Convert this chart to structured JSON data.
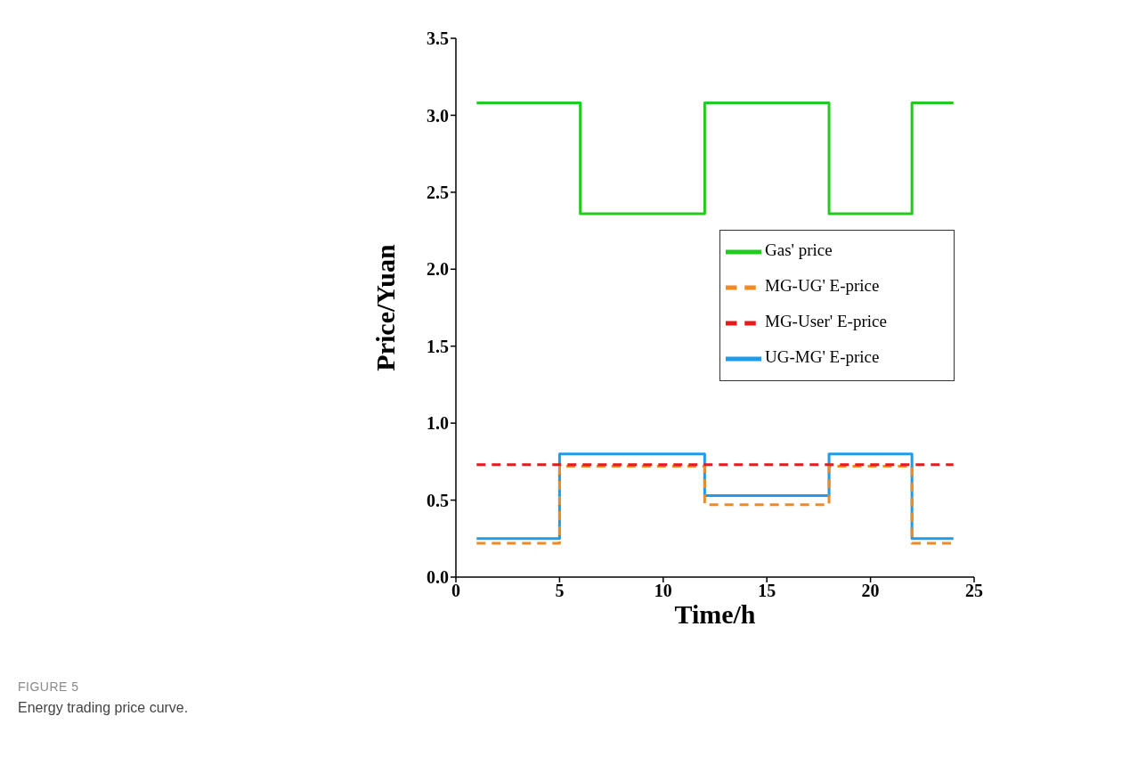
{
  "chart_data": {
    "type": "step",
    "xlabel": "Time/h",
    "ylabel": "Price/Yuan",
    "xlim": [
      0,
      25
    ],
    "xticks": [
      0,
      5,
      10,
      15,
      20,
      25
    ],
    "ylim": [
      0,
      3.5
    ],
    "yticks": [
      {
        "value": 0,
        "label": "0.0"
      },
      {
        "value": 0.5,
        "label": "0.5"
      },
      {
        "value": 1,
        "label": "1.0"
      },
      {
        "value": 1.5,
        "label": "1.5"
      },
      {
        "value": 2,
        "label": "2.0"
      },
      {
        "value": 2.5,
        "label": "2.5"
      },
      {
        "value": 3,
        "label": "3.0"
      },
      {
        "value": 3.5,
        "label": "3.5"
      }
    ],
    "grid": false,
    "legend": "right",
    "marker": "none",
    "series": [
      {
        "name": "UG-MG' E-price",
        "color": "#1f9be8",
        "line_style": "solid",
        "x": [
          1,
          5,
          12,
          18,
          22,
          24
        ],
        "values": [
          0.25,
          0.8,
          0.53,
          0.8,
          0.25,
          0.25
        ]
      },
      {
        "name": "MG-UG' E-price",
        "color": "#f08a24",
        "line_style": "dashed",
        "x": [
          1,
          5,
          12,
          18,
          22,
          24
        ],
        "values": [
          0.22,
          0.72,
          0.47,
          0.72,
          0.22,
          0.22
        ]
      },
      {
        "name": "MG-User' E-price",
        "color": "#e8191b",
        "line_style": "dashed",
        "x": [
          1,
          24
        ],
        "values": [
          0.73,
          0.73
        ]
      },
      {
        "name": "Gas' price",
        "color": "#22c91e",
        "line_style": "solid",
        "x": [
          1,
          6,
          12,
          18,
          22,
          24
        ],
        "values": [
          3.08,
          2.36,
          3.08,
          2.36,
          3.08,
          3.08
        ]
      }
    ],
    "annotations": [
      "FIGURE 5",
      "Energy trading price curve."
    ]
  }
}
